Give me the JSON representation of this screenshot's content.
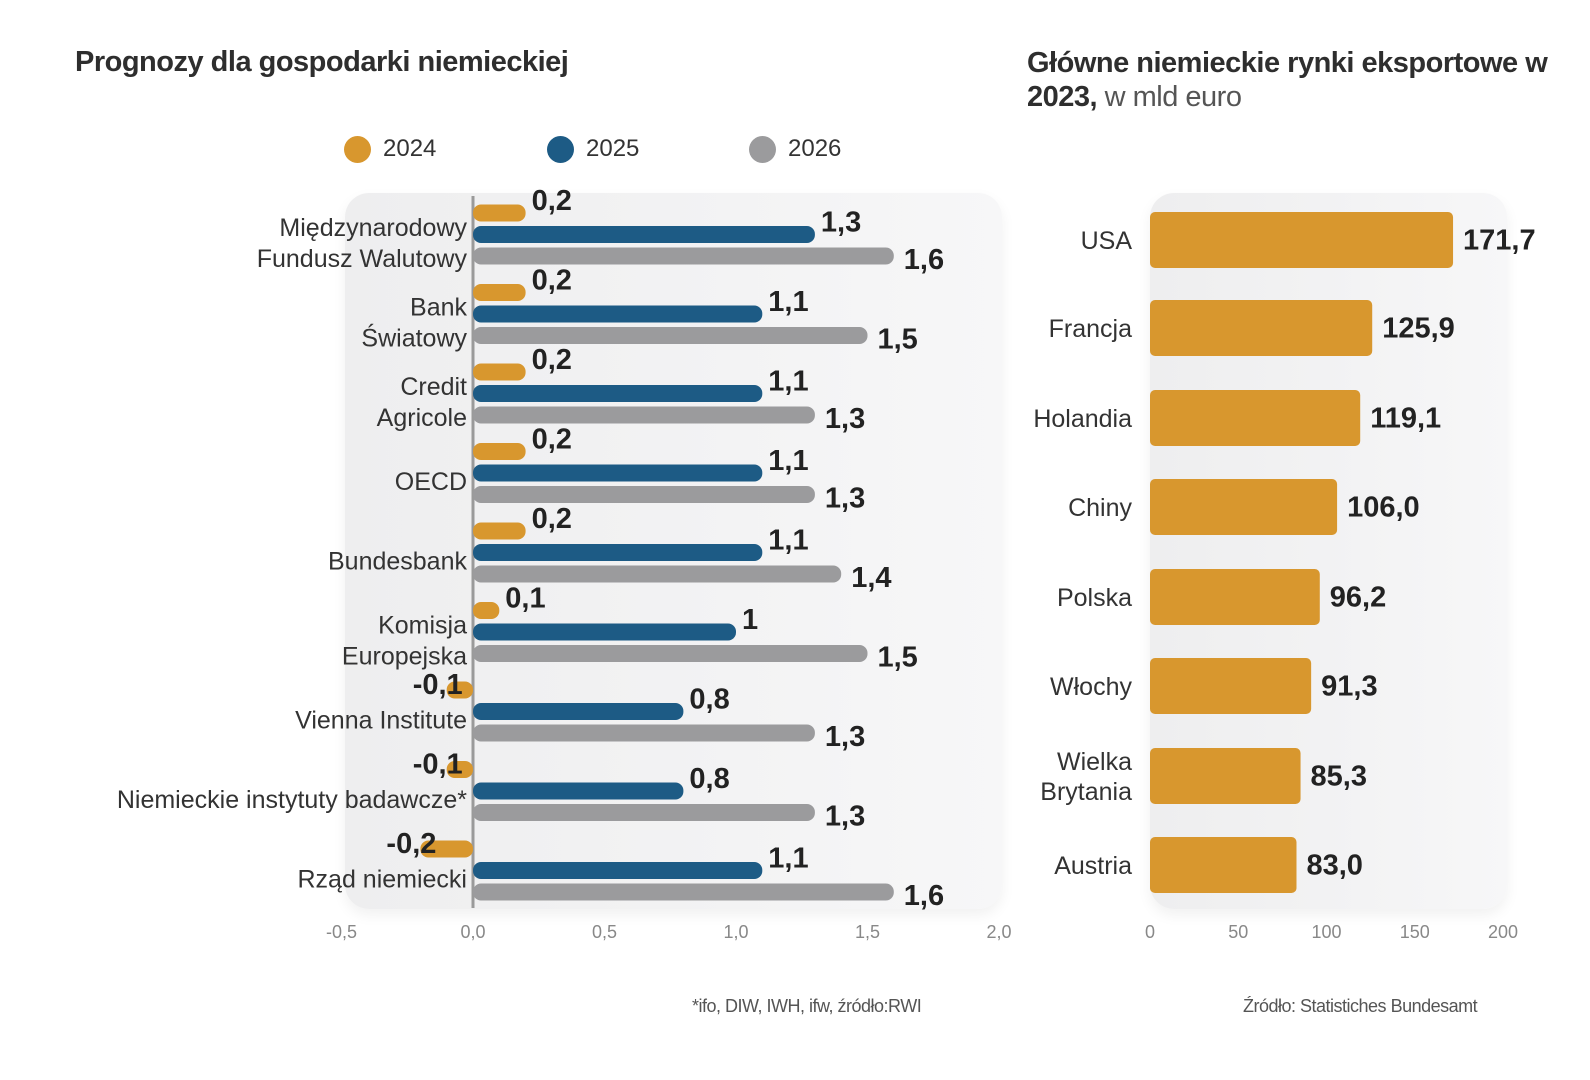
{
  "left": {
    "title": "Prognozy dla gospodarki niemieckiej",
    "footnote": "*ifo, DIW, IWH, ifw,  źródło:RWI"
  },
  "right": {
    "title_bold": "Główne niemieckie rynki eksportowe w 2023,",
    "title_light": " w mld euro",
    "footnote": "Źródło: Statistiches Bundesamt"
  },
  "colors": {
    "2024": "#d8972e",
    "2025": "#1d5b85",
    "2026": "#9b9b9d",
    "exports": "#d8972e",
    "axis": "#9a9a9a"
  },
  "chart_data": [
    {
      "type": "bar",
      "orientation": "horizontal",
      "title": "Prognozy dla gospodarki niemieckiej",
      "categories": [
        "Międzynarodowy\nFundusz Walutowy",
        "Bank\nŚwiatowy",
        "Credit\nAgricole",
        "OECD",
        "Bundesbank",
        "Komisja\nEuropejska",
        "Vienna Institute",
        "Niemieckie instytuty badawcze*",
        "Rząd niemiecki"
      ],
      "series": [
        {
          "name": "2024",
          "values": [
            0.2,
            0.2,
            0.2,
            0.2,
            0.2,
            0.1,
            -0.1,
            -0.1,
            -0.2
          ],
          "labels": [
            "0,2",
            "0,2",
            "0,2",
            "0,2",
            "0,2",
            "0,1",
            "-0,1",
            "-0,1",
            "-0,2"
          ]
        },
        {
          "name": "2025",
          "values": [
            1.3,
            1.1,
            1.1,
            1.1,
            1.1,
            1.0,
            0.8,
            0.8,
            1.1
          ],
          "labels": [
            "1,3",
            "1,1",
            "1,1",
            "1,1",
            "1,1",
            "1",
            "0,8",
            "0,8",
            "1,1"
          ]
        },
        {
          "name": "2026",
          "values": [
            1.6,
            1.5,
            1.3,
            1.3,
            1.4,
            1.5,
            1.3,
            1.3,
            1.6
          ],
          "labels": [
            "1,6",
            "1,5",
            "1,3",
            "1,3",
            "1,4",
            "1,5",
            "1,3",
            "1,3",
            "1,6"
          ]
        }
      ],
      "xlim": [
        -0.5,
        2.0
      ],
      "xticks": [
        -0.5,
        0.0,
        0.5,
        1.0,
        1.5,
        2.0
      ],
      "xtick_labels": [
        "-0,5",
        "0,0",
        "0,5",
        "1,0",
        "1,5",
        "2,0"
      ],
      "legend": [
        "2024",
        "2025",
        "2026"
      ],
      "legend_position": "top",
      "grid": false,
      "xlabel": "",
      "ylabel": ""
    },
    {
      "type": "bar",
      "orientation": "horizontal",
      "title": "Główne niemieckie rynki eksportowe w 2023, w mld euro",
      "categories": [
        "USA",
        "Francja",
        "Holandia",
        "Chiny",
        "Polska",
        "Włochy",
        "Wielka\nBrytania",
        "Austria"
      ],
      "values": [
        171.7,
        125.9,
        119.1,
        106.0,
        96.2,
        91.3,
        85.3,
        83.0
      ],
      "labels": [
        "171,7",
        "125,9",
        "119,1",
        "106,0",
        "96,2",
        "91,3",
        "85,3",
        "83,0"
      ],
      "xlim": [
        0,
        200
      ],
      "xticks": [
        0,
        50,
        100,
        150,
        200
      ],
      "xtick_labels": [
        "0",
        "50",
        "100",
        "150",
        "200"
      ],
      "grid": false,
      "xlabel": "",
      "ylabel": ""
    }
  ]
}
